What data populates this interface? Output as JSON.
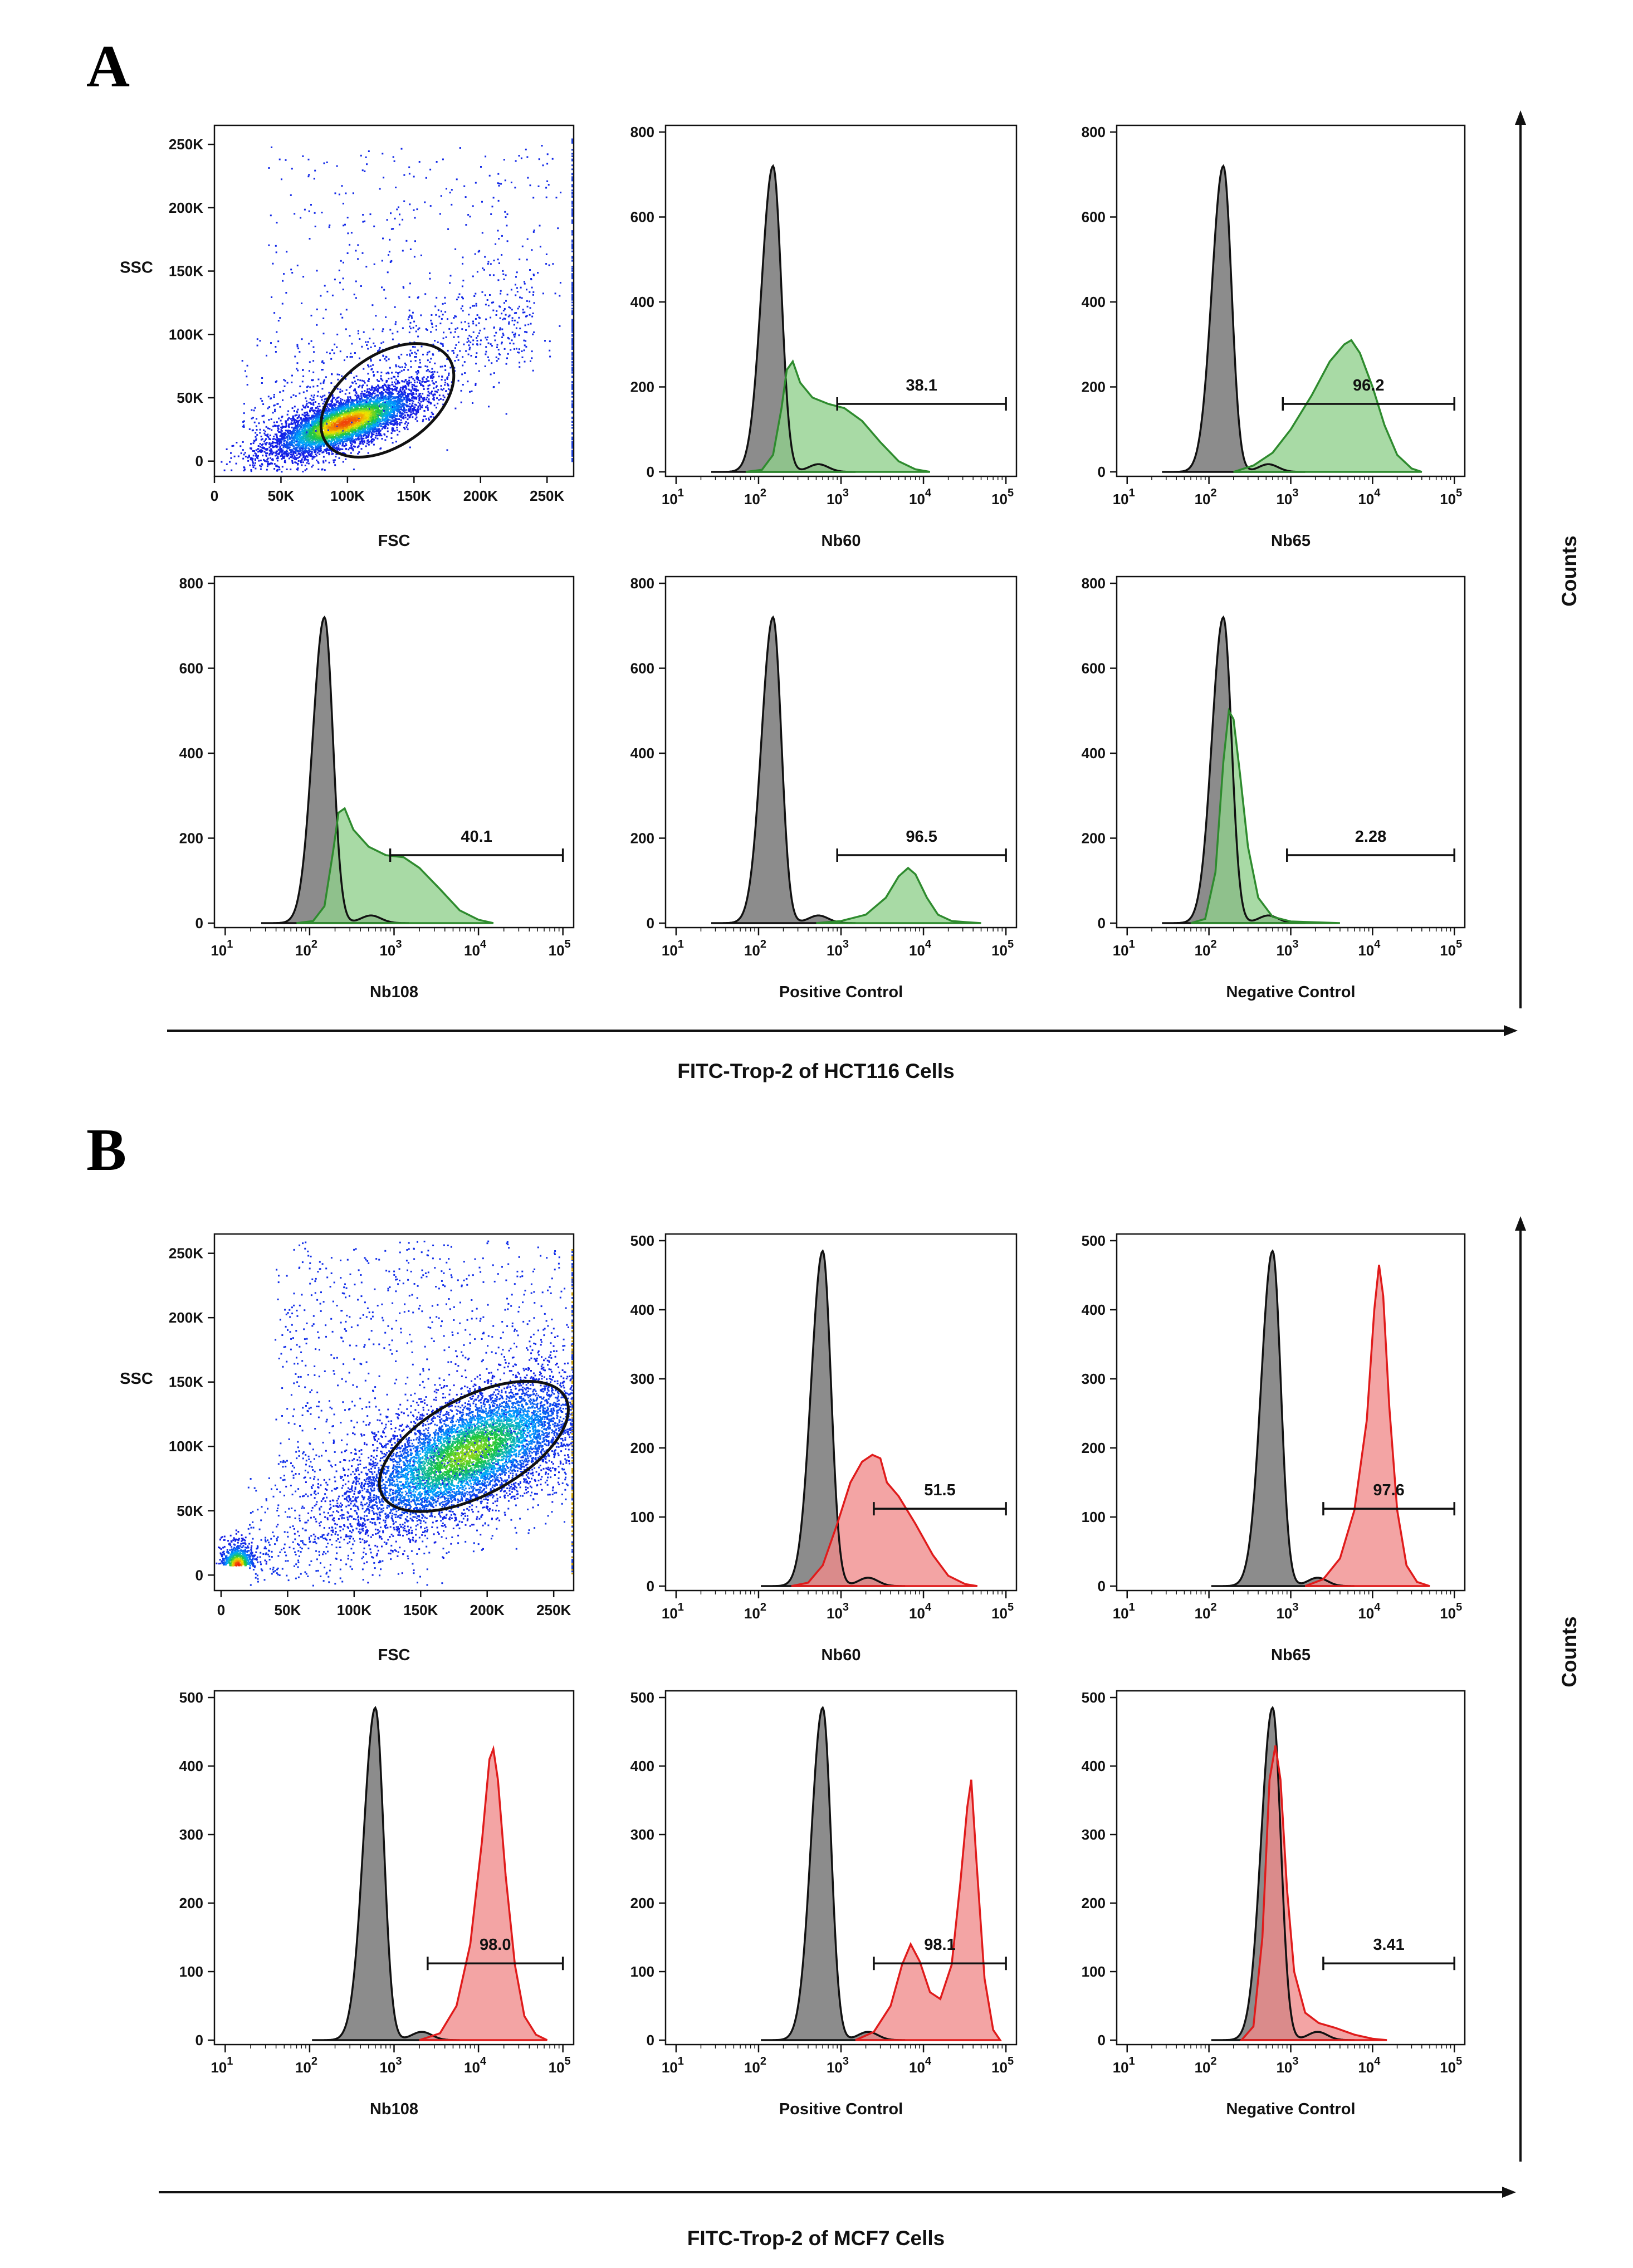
{
  "colors": {
    "control_fill": "#8c8c8c",
    "control_line": "#111111",
    "green_fill": "#8fd08c",
    "green_line": "#2e8b2e",
    "red_fill": "#f08a8a",
    "red_line": "#e01b1b"
  },
  "sections": [
    {
      "letter": "A",
      "shared_xlabel": "FITC-Trop-2 of HCT116 Cells",
      "shared_ylabel": "Counts",
      "sample_color": "green"
    },
    {
      "letter": "B",
      "shared_xlabel": "FITC-Trop-2 of MCF7 Cells",
      "shared_ylabel": "Counts",
      "sample_color": "red"
    }
  ],
  "chart_data": [
    {
      "section": "A",
      "type": "scatter",
      "xlabel": "FSC",
      "ylabel": "SSC",
      "xlim": [
        0,
        270000
      ],
      "ylim": [
        -12000,
        265000
      ],
      "xticks": [
        "0",
        "50K",
        "100K",
        "150K",
        "200K",
        "250K"
      ],
      "yticks": [
        "0",
        "50K",
        "100K",
        "150K",
        "200K",
        "250K"
      ],
      "cluster_center": [
        98000,
        28000
      ],
      "gate_ellipse": {
        "cx": 130000,
        "cy": 48000,
        "rx": 56000,
        "ry": 36000,
        "angle_deg": 35
      }
    },
    {
      "section": "A",
      "type": "area",
      "xlabel": "Nb60",
      "xscale": "log",
      "xlim": [
        10,
        100000
      ],
      "ylim": [
        0,
        800
      ],
      "yticks": [
        0,
        200,
        400,
        600,
        800
      ],
      "control": {
        "peak_x": 150,
        "peak_y": 720
      },
      "sample_points": [
        [
          70,
          0
        ],
        [
          110,
          5
        ],
        [
          150,
          40
        ],
        [
          190,
          150
        ],
        [
          220,
          240
        ],
        [
          260,
          260
        ],
        [
          320,
          210
        ],
        [
          450,
          175
        ],
        [
          700,
          160
        ],
        [
          1100,
          150
        ],
        [
          1800,
          120
        ],
        [
          3000,
          70
        ],
        [
          5000,
          25
        ],
        [
          8000,
          6
        ],
        [
          12000,
          0
        ]
      ],
      "gate": {
        "label": "38.1",
        "from": 900,
        "to": 100000,
        "y": 160
      }
    },
    {
      "section": "A",
      "type": "area",
      "xlabel": "Nb65",
      "xscale": "log",
      "xlim": [
        10,
        100000
      ],
      "ylim": [
        0,
        800
      ],
      "yticks": [
        0,
        200,
        400,
        600,
        800
      ],
      "control": {
        "peak_x": 150,
        "peak_y": 720
      },
      "sample_points": [
        [
          200,
          0
        ],
        [
          350,
          15
        ],
        [
          600,
          45
        ],
        [
          1000,
          100
        ],
        [
          1800,
          180
        ],
        [
          3000,
          260
        ],
        [
          4500,
          300
        ],
        [
          5500,
          310
        ],
        [
          7000,
          280
        ],
        [
          10000,
          200
        ],
        [
          14000,
          110
        ],
        [
          20000,
          40
        ],
        [
          30000,
          8
        ],
        [
          40000,
          0
        ]
      ],
      "gate": {
        "label": "96.2",
        "from": 800,
        "to": 100000,
        "y": 160
      }
    },
    {
      "section": "A",
      "type": "area",
      "xlabel": "Nb108",
      "xscale": "log",
      "xlim": [
        10,
        100000
      ],
      "ylim": [
        0,
        800
      ],
      "yticks": [
        0,
        200,
        400,
        600,
        800
      ],
      "control": {
        "peak_x": 150,
        "peak_y": 720
      },
      "sample_points": [
        [
          70,
          0
        ],
        [
          110,
          5
        ],
        [
          150,
          40
        ],
        [
          190,
          170
        ],
        [
          220,
          260
        ],
        [
          260,
          270
        ],
        [
          330,
          220
        ],
        [
          500,
          180
        ],
        [
          800,
          160
        ],
        [
          1300,
          155
        ],
        [
          2000,
          130
        ],
        [
          3500,
          80
        ],
        [
          6000,
          30
        ],
        [
          10000,
          8
        ],
        [
          15000,
          0
        ]
      ],
      "gate": {
        "label": "40.1",
        "from": 900,
        "to": 100000,
        "y": 160
      }
    },
    {
      "section": "A",
      "type": "area",
      "xlabel": "Positive Control",
      "xscale": "log",
      "xlim": [
        10,
        100000
      ],
      "ylim": [
        0,
        800
      ],
      "yticks": [
        0,
        200,
        400,
        600,
        800
      ],
      "control": {
        "peak_x": 150,
        "peak_y": 720
      },
      "sample_points": [
        [
          500,
          0
        ],
        [
          1000,
          5
        ],
        [
          2000,
          20
        ],
        [
          3500,
          60
        ],
        [
          5000,
          110
        ],
        [
          6500,
          130
        ],
        [
          8000,
          115
        ],
        [
          11000,
          60
        ],
        [
          15000,
          20
        ],
        [
          22000,
          5
        ],
        [
          35000,
          2
        ],
        [
          50000,
          0
        ]
      ],
      "gate": {
        "label": "96.5",
        "from": 900,
        "to": 100000,
        "y": 160
      }
    },
    {
      "section": "A",
      "type": "area",
      "xlabel": "Negative Control",
      "xscale": "log",
      "xlim": [
        10,
        100000
      ],
      "ylim": [
        0,
        800
      ],
      "yticks": [
        0,
        200,
        400,
        600,
        800
      ],
      "control": {
        "peak_x": 150,
        "peak_y": 720
      },
      "sample_points": [
        [
          60,
          0
        ],
        [
          90,
          10
        ],
        [
          120,
          120
        ],
        [
          150,
          380
        ],
        [
          175,
          500
        ],
        [
          200,
          480
        ],
        [
          240,
          350
        ],
        [
          300,
          180
        ],
        [
          400,
          60
        ],
        [
          600,
          15
        ],
        [
          1000,
          4
        ],
        [
          2000,
          2
        ],
        [
          4000,
          0
        ]
      ],
      "gate": {
        "label": "2.28",
        "from": 900,
        "to": 100000,
        "y": 160
      }
    },
    {
      "section": "B",
      "type": "scatter",
      "xlabel": "FSC",
      "ylabel": "SSC",
      "xlim": [
        -5000,
        265000
      ],
      "ylim": [
        -12000,
        265000
      ],
      "xticks": [
        "0",
        "50K",
        "100K",
        "150K",
        "200K",
        "250K"
      ],
      "yticks": [
        "0",
        "50K",
        "100K",
        "150K",
        "200K",
        "250K"
      ],
      "cluster_center": [
        185000,
        95000
      ],
      "gate_ellipse": {
        "cx": 190000,
        "cy": 100000,
        "rx": 78000,
        "ry": 38000,
        "angle_deg": 28
      }
    },
    {
      "section": "B",
      "type": "area",
      "xlabel": "Nb60",
      "xscale": "log",
      "xlim": [
        10,
        100000
      ],
      "ylim": [
        0,
        500
      ],
      "yticks": [
        0,
        100,
        200,
        300,
        400,
        500
      ],
      "control": {
        "peak_x": 600,
        "peak_y": 485
      },
      "sample_points": [
        [
          250,
          0
        ],
        [
          400,
          5
        ],
        [
          600,
          30
        ],
        [
          900,
          90
        ],
        [
          1300,
          150
        ],
        [
          1800,
          180
        ],
        [
          2400,
          190
        ],
        [
          3000,
          185
        ],
        [
          3600,
          150
        ],
        [
          5000,
          130
        ],
        [
          8000,
          90
        ],
        [
          13000,
          45
        ],
        [
          20000,
          15
        ],
        [
          32000,
          3
        ],
        [
          45000,
          0
        ]
      ],
      "gate": {
        "label": "51.5",
        "from": 2500,
        "to": 100000,
        "y": 112
      }
    },
    {
      "section": "B",
      "type": "area",
      "xlabel": "Nb65",
      "xscale": "log",
      "xlim": [
        10,
        100000
      ],
      "ylim": [
        0,
        500
      ],
      "yticks": [
        0,
        100,
        200,
        300,
        400,
        500
      ],
      "control": {
        "peak_x": 600,
        "peak_y": 485
      },
      "sample_points": [
        [
          1500,
          0
        ],
        [
          2500,
          10
        ],
        [
          4000,
          40
        ],
        [
          6000,
          110
        ],
        [
          8500,
          240
        ],
        [
          10500,
          400
        ],
        [
          12000,
          465
        ],
        [
          13500,
          420
        ],
        [
          16000,
          260
        ],
        [
          20000,
          110
        ],
        [
          26000,
          30
        ],
        [
          35000,
          6
        ],
        [
          50000,
          0
        ]
      ],
      "gate": {
        "label": "97.6",
        "from": 2500,
        "to": 100000,
        "y": 112
      }
    },
    {
      "section": "B",
      "type": "area",
      "xlabel": "Nb108",
      "xscale": "log",
      "xlim": [
        10,
        100000
      ],
      "ylim": [
        0,
        500
      ],
      "yticks": [
        0,
        100,
        200,
        300,
        400,
        500
      ],
      "control": {
        "peak_x": 600,
        "peak_y": 485
      },
      "sample_points": [
        [
          2000,
          0
        ],
        [
          3500,
          10
        ],
        [
          5500,
          50
        ],
        [
          8000,
          140
        ],
        [
          11000,
          290
        ],
        [
          13500,
          410
        ],
        [
          15000,
          425
        ],
        [
          17000,
          380
        ],
        [
          21000,
          240
        ],
        [
          27000,
          110
        ],
        [
          35000,
          35
        ],
        [
          48000,
          8
        ],
        [
          65000,
          0
        ]
      ],
      "gate": {
        "label": "98.0",
        "from": 2500,
        "to": 100000,
        "y": 112
      }
    },
    {
      "section": "B",
      "type": "area",
      "xlabel": "Positive Control",
      "xscale": "log",
      "xlim": [
        10,
        100000
      ],
      "ylim": [
        0,
        500
      ],
      "yticks": [
        0,
        100,
        200,
        300,
        400,
        500
      ],
      "control": {
        "peak_x": 600,
        "peak_y": 485
      },
      "sample_points": [
        [
          1500,
          0
        ],
        [
          2500,
          12
        ],
        [
          4000,
          50
        ],
        [
          5500,
          110
        ],
        [
          7000,
          140
        ],
        [
          9000,
          115
        ],
        [
          12000,
          70
        ],
        [
          16000,
          60
        ],
        [
          22000,
          110
        ],
        [
          28000,
          230
        ],
        [
          34000,
          340
        ],
        [
          38000,
          380
        ],
        [
          44000,
          260
        ],
        [
          55000,
          90
        ],
        [
          70000,
          15
        ],
        [
          85000,
          0
        ]
      ],
      "gate": {
        "label": "98.1",
        "from": 2500,
        "to": 100000,
        "y": 112
      }
    },
    {
      "section": "B",
      "type": "area",
      "xlabel": "Negative Control",
      "xscale": "log",
      "xlim": [
        10,
        100000
      ],
      "ylim": [
        0,
        500
      ],
      "yticks": [
        0,
        100,
        200,
        300,
        400,
        500
      ],
      "control": {
        "peak_x": 600,
        "peak_y": 485
      },
      "sample_points": [
        [
          250,
          0
        ],
        [
          350,
          20
        ],
        [
          450,
          150
        ],
        [
          550,
          380
        ],
        [
          650,
          430
        ],
        [
          750,
          380
        ],
        [
          900,
          220
        ],
        [
          1100,
          100
        ],
        [
          1500,
          40
        ],
        [
          2200,
          25
        ],
        [
          3500,
          18
        ],
        [
          6000,
          8
        ],
        [
          10000,
          2
        ],
        [
          15000,
          0
        ]
      ],
      "gate": {
        "label": "3.41",
        "from": 2500,
        "to": 100000,
        "y": 112
      }
    }
  ]
}
